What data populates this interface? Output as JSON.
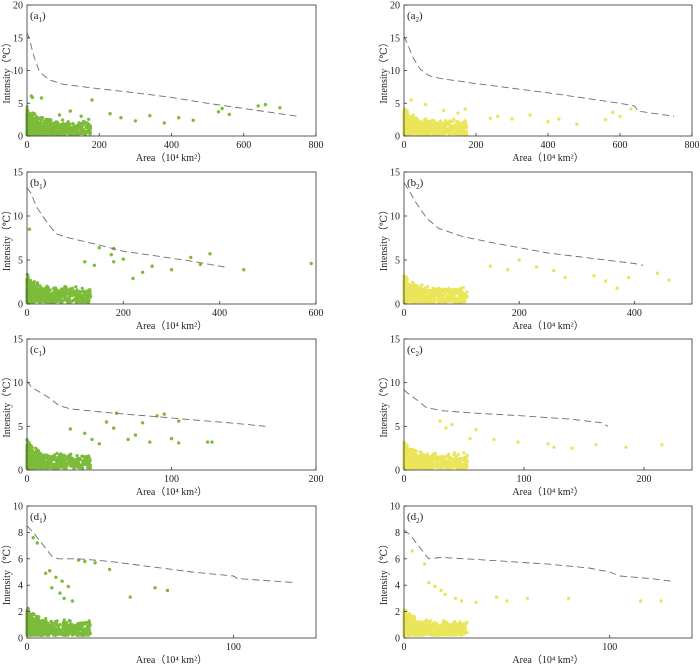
{
  "figure": {
    "description_free": true
  },
  "chart_data": [
    {
      "id": "a1",
      "panel_letter": "a",
      "panel_index": "1",
      "type": "scatter",
      "color": "#7dbb3a",
      "xlim": [
        0,
        800
      ],
      "xticks": [
        0,
        200,
        400,
        600,
        800
      ],
      "ylim": [
        0,
        20
      ],
      "yticks": [
        0,
        5,
        10,
        15,
        20
      ],
      "ylabel": "Intensity（℃）",
      "xlabel": "Area（10⁴ km²）",
      "envelope": [
        [
          0,
          15.8
        ],
        [
          8,
          14.5
        ],
        [
          20,
          12
        ],
        [
          35,
          9.8
        ],
        [
          60,
          8.6
        ],
        [
          100,
          7.9
        ],
        [
          200,
          7.2
        ],
        [
          300,
          6.6
        ],
        [
          400,
          5.9
        ],
        [
          500,
          5.0
        ],
        [
          600,
          4.2
        ],
        [
          700,
          3.4
        ],
        [
          750,
          3.0
        ]
      ],
      "points": [
        [
          15,
          5.9
        ],
        [
          12,
          6.1
        ],
        [
          40,
          5.8
        ],
        [
          180,
          5.5
        ],
        [
          340,
          3.1
        ],
        [
          420,
          2.8
        ],
        [
          530,
          3.7
        ],
        [
          540,
          4.2
        ],
        [
          560,
          3.3
        ],
        [
          640,
          4.6
        ],
        [
          660,
          4.8
        ],
        [
          700,
          4.3
        ],
        [
          380,
          2.0
        ],
        [
          300,
          2.3
        ],
        [
          260,
          2.8
        ],
        [
          230,
          3.4
        ],
        [
          460,
          2.4
        ],
        [
          90,
          3.2
        ],
        [
          120,
          3.8
        ],
        [
          150,
          3.0
        ]
      ]
    },
    {
      "id": "a2",
      "panel_letter": "a",
      "panel_index": "2",
      "type": "scatter",
      "color": "#ebe55a",
      "xlim": [
        0,
        800
      ],
      "xticks": [
        0,
        200,
        400,
        600,
        800
      ],
      "ylim": [
        0,
        20
      ],
      "yticks": [
        0,
        5,
        10,
        15,
        20
      ],
      "ylabel": "Intensity（℃）",
      "xlabel": "Area（10⁴ km²）",
      "envelope": [
        [
          0,
          15.2
        ],
        [
          10,
          14
        ],
        [
          25,
          12
        ],
        [
          45,
          10.2
        ],
        [
          70,
          9.2
        ],
        [
          100,
          8.8
        ],
        [
          200,
          8.0
        ],
        [
          300,
          7.3
        ],
        [
          400,
          6.6
        ],
        [
          500,
          5.8
        ],
        [
          600,
          5.0
        ],
        [
          640,
          4.6
        ],
        [
          650,
          3.8
        ],
        [
          700,
          3.4
        ],
        [
          750,
          3.0
        ]
      ],
      "points": [
        [
          20,
          5.5
        ],
        [
          60,
          4.8
        ],
        [
          150,
          3.5
        ],
        [
          240,
          2.7
        ],
        [
          300,
          2.6
        ],
        [
          350,
          3.2
        ],
        [
          400,
          2.2
        ],
        [
          430,
          2.6
        ],
        [
          480,
          1.8
        ],
        [
          560,
          2.5
        ],
        [
          580,
          3.6
        ],
        [
          600,
          3.0
        ],
        [
          630,
          4.1
        ],
        [
          170,
          4.1
        ],
        [
          110,
          3.9
        ],
        [
          260,
          3.0
        ]
      ]
    },
    {
      "id": "b1",
      "panel_letter": "b",
      "panel_index": "1",
      "type": "scatter",
      "color": "#7dbb3a",
      "xlim": [
        0,
        600
      ],
      "xticks": [
        0,
        200,
        400,
        600
      ],
      "ylim": [
        0,
        15
      ],
      "yticks": [
        0,
        5,
        10,
        15
      ],
      "ylabel": "Intensity（℃）",
      "xlabel": "Area（10⁴ km²）",
      "envelope": [
        [
          0,
          13.2
        ],
        [
          8,
          12.6
        ],
        [
          20,
          11
        ],
        [
          40,
          9.4
        ],
        [
          60,
          8.0
        ],
        [
          80,
          7.6
        ],
        [
          150,
          6.7
        ],
        [
          200,
          6.0
        ],
        [
          250,
          5.6
        ],
        [
          300,
          5.2
        ],
        [
          350,
          4.8
        ],
        [
          400,
          4.3
        ],
        [
          410,
          4.2
        ]
      ],
      "points": [
        [
          5,
          8.5
        ],
        [
          150,
          6.4
        ],
        [
          180,
          6.3
        ],
        [
          175,
          5.6
        ],
        [
          200,
          5.1
        ],
        [
          180,
          4.8
        ],
        [
          140,
          4.4
        ],
        [
          340,
          5.3
        ],
        [
          360,
          4.5
        ],
        [
          380,
          5.7
        ],
        [
          300,
          3.9
        ],
        [
          450,
          3.9
        ],
        [
          590,
          4.6
        ],
        [
          240,
          3.6
        ],
        [
          260,
          4.3
        ],
        [
          220,
          2.9
        ],
        [
          120,
          4.8
        ]
      ]
    },
    {
      "id": "b2",
      "panel_letter": "b",
      "panel_index": "2",
      "type": "scatter",
      "color": "#ebe55a",
      "xlim": [
        0,
        500
      ],
      "xticks": [
        0,
        200,
        400
      ],
      "ylim": [
        0,
        15
      ],
      "yticks": [
        0,
        5,
        10,
        15
      ],
      "ylabel": "Intensity（℃）",
      "xlabel": "Area（10⁴ km²）",
      "envelope": [
        [
          0,
          13.8
        ],
        [
          8,
          13.0
        ],
        [
          20,
          11.6
        ],
        [
          40,
          9.7
        ],
        [
          60,
          8.6
        ],
        [
          100,
          7.7
        ],
        [
          150,
          7.0
        ],
        [
          200,
          6.4
        ],
        [
          250,
          5.8
        ],
        [
          300,
          5.4
        ],
        [
          350,
          5.0
        ],
        [
          400,
          4.6
        ],
        [
          415,
          4.4
        ]
      ],
      "points": [
        [
          230,
          4.2
        ],
        [
          260,
          3.8
        ],
        [
          280,
          3.0
        ],
        [
          330,
          3.2
        ],
        [
          350,
          2.6
        ],
        [
          390,
          3.0
        ],
        [
          440,
          3.5
        ],
        [
          460,
          2.7
        ],
        [
          200,
          5.0
        ],
        [
          180,
          3.9
        ],
        [
          150,
          4.3
        ],
        [
          370,
          1.8
        ]
      ]
    },
    {
      "id": "c1",
      "panel_letter": "c",
      "panel_index": "1",
      "type": "scatter",
      "color": "#7dbb3a",
      "xlim": [
        0,
        200
      ],
      "xticks": [
        0,
        100,
        200
      ],
      "ylim": [
        0,
        15
      ],
      "yticks": [
        0,
        5,
        10,
        15
      ],
      "ylabel": "Intensity（℃）",
      "xlabel": "Area（10⁴ km²）",
      "envelope": [
        [
          0,
          10.2
        ],
        [
          3,
          9.5
        ],
        [
          8,
          9.0
        ],
        [
          15,
          8.3
        ],
        [
          22,
          7.4
        ],
        [
          30,
          7.0
        ],
        [
          60,
          6.5
        ],
        [
          90,
          6.1
        ],
        [
          110,
          5.8
        ],
        [
          140,
          5.4
        ],
        [
          165,
          5.0
        ]
      ],
      "points": [
        [
          90,
          6.2
        ],
        [
          95,
          6.4
        ],
        [
          105,
          5.6
        ],
        [
          80,
          5.4
        ],
        [
          62,
          6.5
        ],
        [
          60,
          4.8
        ],
        [
          75,
          4.0
        ],
        [
          85,
          3.2
        ],
        [
          100,
          3.6
        ],
        [
          105,
          3.1
        ],
        [
          125,
          3.2
        ],
        [
          128,
          3.2
        ],
        [
          50,
          3.0
        ],
        [
          40,
          4.2
        ],
        [
          45,
          3.5
        ],
        [
          70,
          3.5
        ],
        [
          30,
          4.7
        ],
        [
          55,
          5.5
        ]
      ]
    },
    {
      "id": "c2",
      "panel_letter": "c",
      "panel_index": "2",
      "type": "scatter",
      "color": "#ebe55a",
      "xlim": [
        0,
        240
      ],
      "xticks": [
        0,
        100,
        200
      ],
      "ylim": [
        0,
        15
      ],
      "yticks": [
        0,
        5,
        10,
        15
      ],
      "ylabel": "Intensity（℃）",
      "xlabel": "Area（10⁴ km²）",
      "envelope": [
        [
          0,
          9.2
        ],
        [
          3,
          8.8
        ],
        [
          8,
          8.3
        ],
        [
          12,
          7.9
        ],
        [
          18,
          7.2
        ],
        [
          30,
          6.8
        ],
        [
          60,
          6.5
        ],
        [
          100,
          6.2
        ],
        [
          140,
          5.8
        ],
        [
          165,
          5.4
        ],
        [
          170,
          5.0
        ]
      ],
      "points": [
        [
          35,
          4.8
        ],
        [
          40,
          5.2
        ],
        [
          60,
          4.6
        ],
        [
          75,
          3.5
        ],
        [
          95,
          3.2
        ],
        [
          120,
          3.0
        ],
        [
          125,
          2.6
        ],
        [
          140,
          2.5
        ],
        [
          160,
          2.9
        ],
        [
          185,
          2.6
        ],
        [
          215,
          2.9
        ],
        [
          55,
          3.6
        ],
        [
          30,
          5.6
        ]
      ]
    },
    {
      "id": "d1",
      "panel_letter": "d",
      "panel_index": "1",
      "type": "scatter",
      "color": "#7dbb3a",
      "xlim": [
        0,
        140
      ],
      "xticks": [
        0,
        100
      ],
      "ylim": [
        0,
        10
      ],
      "yticks": [
        0,
        2,
        4,
        6,
        8,
        10
      ],
      "ylabel": "Intensity（℃）",
      "xlabel": "Area（10⁴ km²）",
      "envelope": [
        [
          0,
          8.5
        ],
        [
          3,
          8.0
        ],
        [
          6,
          7.4
        ],
        [
          9,
          6.8
        ],
        [
          12,
          6.2
        ],
        [
          15,
          6.0
        ],
        [
          25,
          6.0
        ],
        [
          40,
          5.8
        ],
        [
          60,
          5.4
        ],
        [
          80,
          5.0
        ],
        [
          100,
          4.7
        ],
        [
          102,
          4.5
        ],
        [
          120,
          4.3
        ],
        [
          130,
          4.2
        ]
      ],
      "points": [
        [
          12,
          3.8
        ],
        [
          14,
          4.6
        ],
        [
          16,
          3.4
        ],
        [
          18,
          3.0
        ],
        [
          20,
          3.9
        ],
        [
          22,
          2.8
        ],
        [
          25,
          5.9
        ],
        [
          28,
          5.8
        ],
        [
          33,
          5.7
        ],
        [
          40,
          5.2
        ],
        [
          50,
          3.1
        ],
        [
          62,
          3.8
        ],
        [
          68,
          3.6
        ],
        [
          17,
          4.3
        ],
        [
          11,
          5.1
        ],
        [
          5,
          7.2
        ],
        [
          3,
          7.6
        ],
        [
          9,
          4.9
        ]
      ]
    },
    {
      "id": "d2",
      "panel_letter": "d",
      "panel_index": "2",
      "type": "scatter",
      "color": "#ebe55a",
      "xlim": [
        0,
        140
      ],
      "xticks": [
        0,
        100
      ],
      "ylim": [
        0,
        10
      ],
      "yticks": [
        0,
        2,
        4,
        6,
        8,
        10
      ],
      "ylabel": "Intensity（℃）",
      "xlabel": "Area（10⁴ km²）",
      "envelope": [
        [
          0,
          8.2
        ],
        [
          3,
          7.8
        ],
        [
          6,
          7.2
        ],
        [
          9,
          6.6
        ],
        [
          12,
          6.0
        ],
        [
          18,
          6.1
        ],
        [
          30,
          6.0
        ],
        [
          50,
          5.8
        ],
        [
          70,
          5.6
        ],
        [
          90,
          5.3
        ],
        [
          100,
          5.0
        ],
        [
          105,
          4.7
        ],
        [
          120,
          4.5
        ],
        [
          130,
          4.3
        ]
      ],
      "points": [
        [
          12,
          4.2
        ],
        [
          15,
          3.9
        ],
        [
          18,
          3.6
        ],
        [
          20,
          3.3
        ],
        [
          25,
          3.0
        ],
        [
          28,
          2.8
        ],
        [
          35,
          2.7
        ],
        [
          45,
          3.1
        ],
        [
          60,
          3.0
        ],
        [
          80,
          3.0
        ],
        [
          115,
          2.8
        ],
        [
          125,
          2.8
        ],
        [
          50,
          2.8
        ],
        [
          10,
          5.6
        ],
        [
          4,
          6.6
        ]
      ]
    }
  ]
}
